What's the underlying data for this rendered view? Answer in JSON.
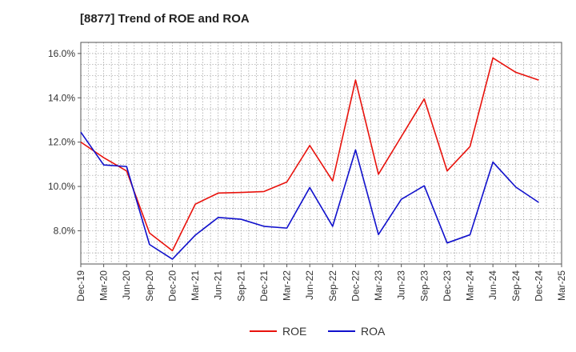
{
  "chart_data": {
    "type": "line",
    "title": "[8877]  Trend of ROE and ROA",
    "xlabel": "",
    "ylabel": "",
    "categories": [
      "Dec-19",
      "Mar-20",
      "Jun-20",
      "Sep-20",
      "Dec-20",
      "Mar-21",
      "Jun-21",
      "Sep-21",
      "Dec-21",
      "Mar-22",
      "Jun-22",
      "Sep-22",
      "Dec-22",
      "Mar-23",
      "Jun-23",
      "Sep-23",
      "Dec-23",
      "Mar-24",
      "Jun-24",
      "Sep-24",
      "Dec-24",
      "Mar-25"
    ],
    "ylim": [
      6.5,
      16.5
    ],
    "yticks": [
      8.0,
      10.0,
      12.0,
      14.0,
      16.0
    ],
    "ytick_labels": [
      "8.0%",
      "10.0%",
      "12.0%",
      "14.0%",
      "16.0%"
    ],
    "grid": true,
    "legend_placement": "bottom-center",
    "series": [
      {
        "name": "ROE",
        "color": "#e8120c",
        "values": [
          12.0,
          11.3,
          10.7,
          7.9,
          7.1,
          9.2,
          9.7,
          9.73,
          9.77,
          10.2,
          11.85,
          10.25,
          14.8,
          10.55,
          12.25,
          13.95,
          10.7,
          11.8,
          15.8,
          15.15,
          14.8,
          null
        ]
      },
      {
        "name": "ROA",
        "color": "#1010cc",
        "values": [
          12.45,
          10.97,
          10.9,
          7.38,
          6.72,
          7.8,
          8.6,
          8.52,
          8.2,
          8.12,
          9.95,
          8.2,
          11.65,
          7.83,
          9.42,
          10.03,
          7.45,
          7.82,
          11.1,
          9.97,
          9.28,
          null
        ]
      }
    ]
  }
}
